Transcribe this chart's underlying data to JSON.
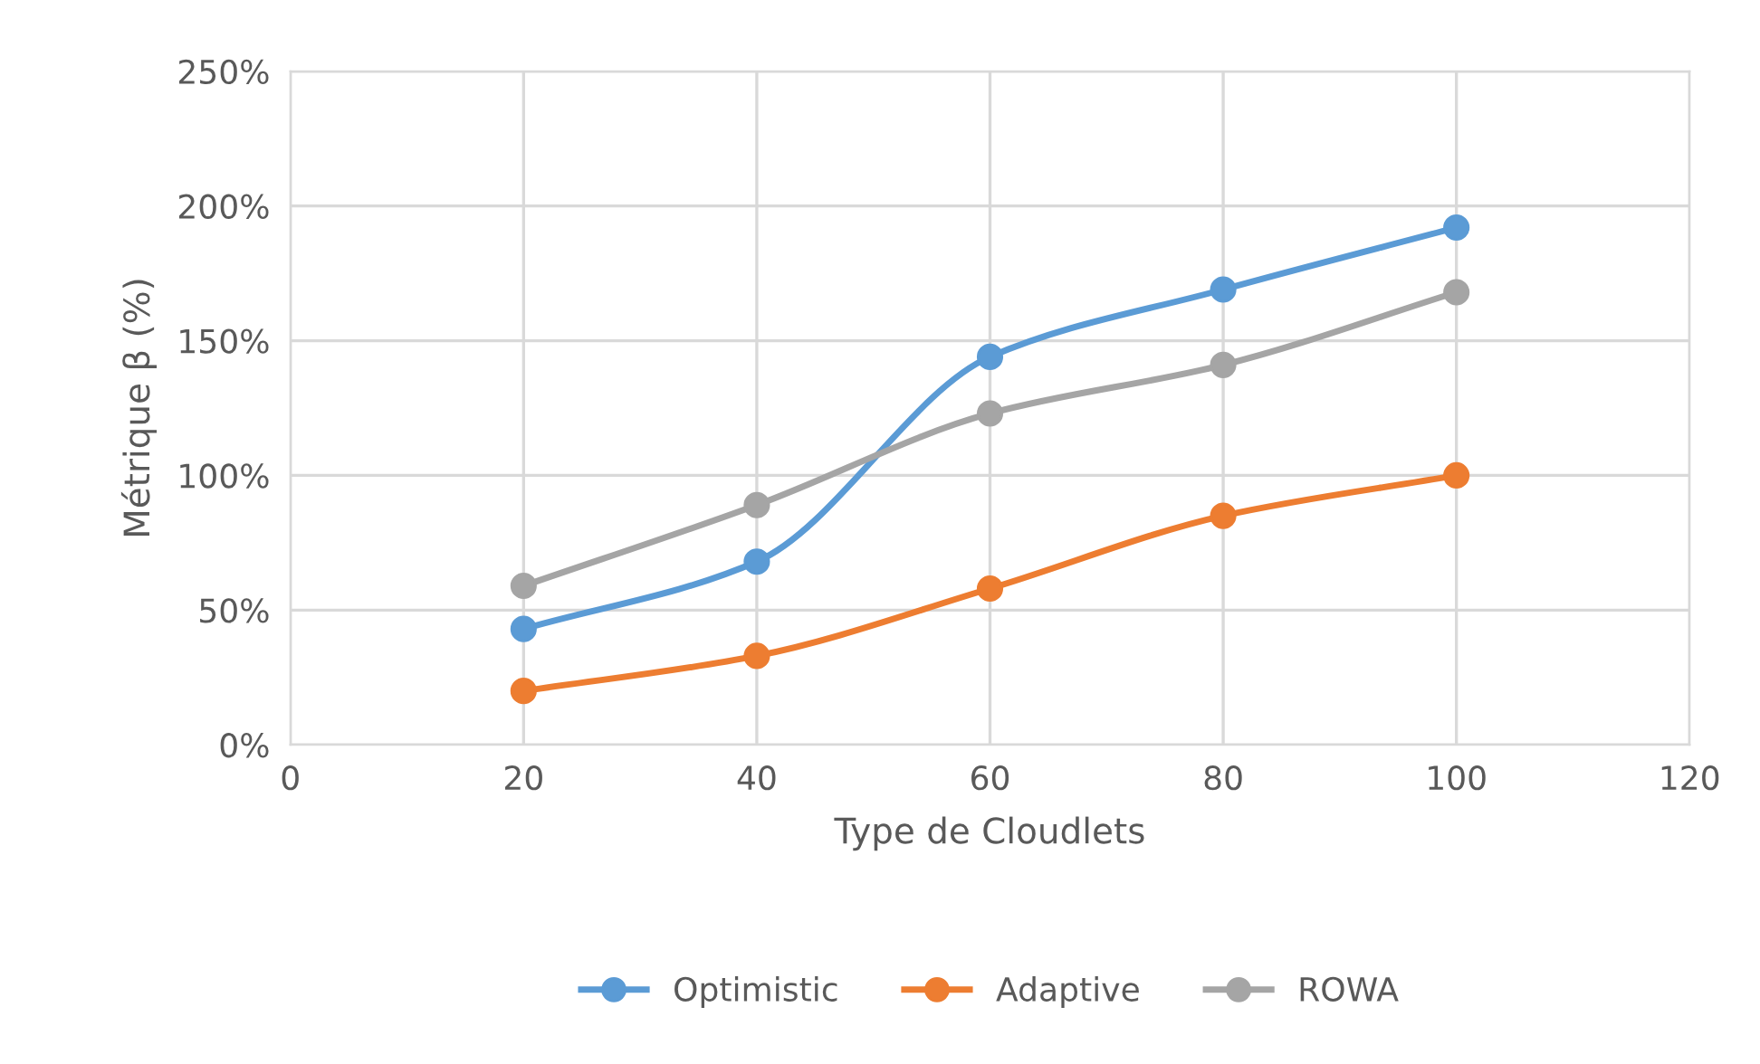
{
  "chart_data": {
    "type": "line",
    "xlabel": "Type de Cloudlets",
    "ylabel": "Métrique β (%)",
    "x": [
      20,
      40,
      60,
      80,
      100
    ],
    "series": [
      {
        "name": "Optimistic",
        "color": "#5b9bd5",
        "values": [
          43,
          68,
          144,
          169,
          192
        ]
      },
      {
        "name": "Adaptive",
        "color": "#ed7d31",
        "values": [
          20,
          33,
          58,
          85,
          100
        ]
      },
      {
        "name": "ROWA",
        "color": "#a5a5a5",
        "values": [
          59,
          89,
          123,
          141,
          168
        ]
      }
    ],
    "xlim": [
      0,
      120
    ],
    "xticks": [
      0,
      20,
      40,
      60,
      80,
      100,
      120
    ],
    "ylim": [
      0,
      250
    ],
    "yticks": [
      {
        "value": 0,
        "label": "0%"
      },
      {
        "value": 50,
        "label": "50%"
      },
      {
        "value": 100,
        "label": "100%"
      },
      {
        "value": 150,
        "label": "150%"
      },
      {
        "value": 200,
        "label": "200%"
      },
      {
        "value": 250,
        "label": "250%"
      }
    ],
    "grid": true,
    "legend": "bottom",
    "marker": "circle",
    "line_style": "solid"
  }
}
